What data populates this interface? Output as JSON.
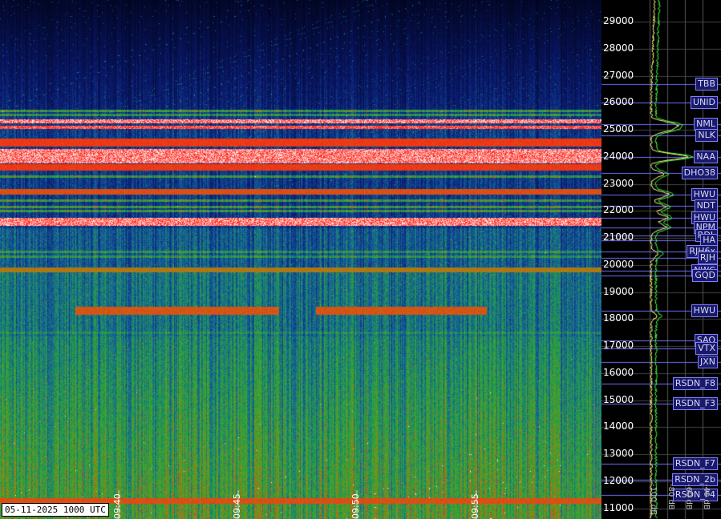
{
  "timestamp": "05-11-2025 1000 UTC",
  "freq_axis": {
    "labels": [
      "29000",
      "28000",
      "27000",
      "26000",
      "25000",
      "24000",
      "23000",
      "22000",
      "21000",
      "20000",
      "19000",
      "18000",
      "17000",
      "16000",
      "15000",
      "14000",
      "13000",
      "12000",
      "11000"
    ],
    "min_hz": 10600,
    "max_hz": 29800
  },
  "time_axis": {
    "labels": [
      "09:40",
      "09:45",
      "09:50",
      "09:55"
    ]
  },
  "db_axis": {
    "labels": [
      "-100 dB",
      "-80 dB",
      "-60 dB",
      "-40 dB"
    ]
  },
  "stations": [
    {
      "name": "TBB",
      "freq": 26700
    },
    {
      "name": "UNID",
      "freq": 26000
    },
    {
      "name": "NML",
      "freq": 25200
    },
    {
      "name": "NLK",
      "freq": 24800
    },
    {
      "name": "NAA",
      "freq": 24000
    },
    {
      "name": "DHO38",
      "freq": 23400
    },
    {
      "name": "HWU",
      "freq": 22600
    },
    {
      "name": "NDT",
      "freq": 22200
    },
    {
      "name": "HWU",
      "freq": 21750
    },
    {
      "name": "NPM",
      "freq": 21400
    },
    {
      "name": "RDL",
      "freq": 21100
    },
    {
      "name": "HA",
      "freq": 20900
    },
    {
      "name": "RJH6x",
      "freq": 20500
    },
    {
      "name": "RJH",
      "freq": 20250
    },
    {
      "name": "NWC",
      "freq": 19800
    },
    {
      "name": "GQD",
      "freq": 19600
    },
    {
      "name": "HWU",
      "freq": 18300
    },
    {
      "name": "SAQ",
      "freq": 17200
    },
    {
      "name": "VTX",
      "freq": 16900
    },
    {
      "name": "JXN",
      "freq": 16400
    },
    {
      "name": "RSDN_F8",
      "freq": 15600
    },
    {
      "name": "RSDN_F3",
      "freq": 14880
    },
    {
      "name": "RSDN_F7",
      "freq": 12650
    },
    {
      "name": "RSDN_2b",
      "freq": 12050
    },
    {
      "name": "RSDN_F4",
      "freq": 11500
    }
  ],
  "colors": {
    "noise_low": "#0a1a6a",
    "noise_mid": "#1a7a3a",
    "noise_high": "#c06010",
    "carrier": "#ff2010",
    "label_border": "#8080ff",
    "label_bg": "#1a1a6a",
    "gridline": "#7070ff",
    "trace_yellow": "#ffff80",
    "trace_green": "#40ff40"
  }
}
